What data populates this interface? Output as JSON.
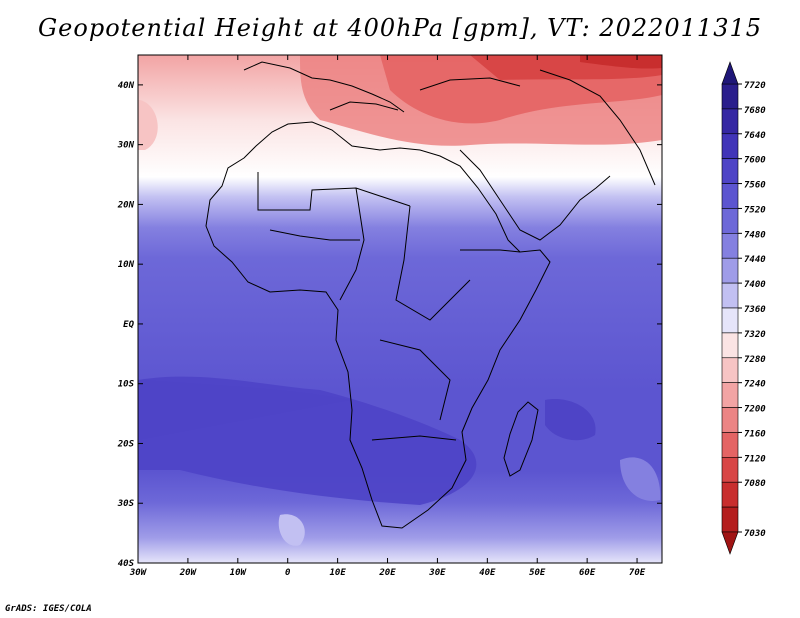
{
  "title": "Geopotential Height at 400hPa [gpm], VT: 2022011315",
  "credit": "GrADS: IGES/COLA",
  "map": {
    "lon_range": [
      -30,
      75
    ],
    "lat_range": [
      -40,
      45
    ],
    "lat_labels": [
      "40N",
      "30N",
      "20N",
      "10N",
      "EQ",
      "10S",
      "20S",
      "30S",
      "40S"
    ],
    "lat_values": [
      40,
      30,
      20,
      10,
      0,
      -10,
      -20,
      -30,
      -40
    ],
    "lon_labels": [
      "30W",
      "20W",
      "10W",
      "0",
      "10E",
      "20E",
      "30E",
      "40E",
      "50E",
      "60E",
      "70E"
    ],
    "lon_values": [
      -30,
      -20,
      -10,
      0,
      10,
      20,
      30,
      40,
      50,
      60,
      70
    ]
  },
  "colorbar": {
    "labels": [
      "7720",
      "7680",
      "7640",
      "7600",
      "7560",
      "7520",
      "7480",
      "7440",
      "7400",
      "7360",
      "7320",
      "7280",
      "7240",
      "7200",
      "7160",
      "7120",
      "7080",
      "7030"
    ],
    "colors": [
      "#2a1e8c",
      "#3527a3",
      "#4134b8",
      "#4e44c6",
      "#5c55d0",
      "#6d68d8",
      "#8480e0",
      "#9f9ce8",
      "#c2c0f2",
      "#e6e5fa",
      "#fbe4e4",
      "#f7c4c4",
      "#f2a4a4",
      "#ec8484",
      "#e46464",
      "#d84646",
      "#c82e2e",
      "#b41e1e"
    ]
  }
}
